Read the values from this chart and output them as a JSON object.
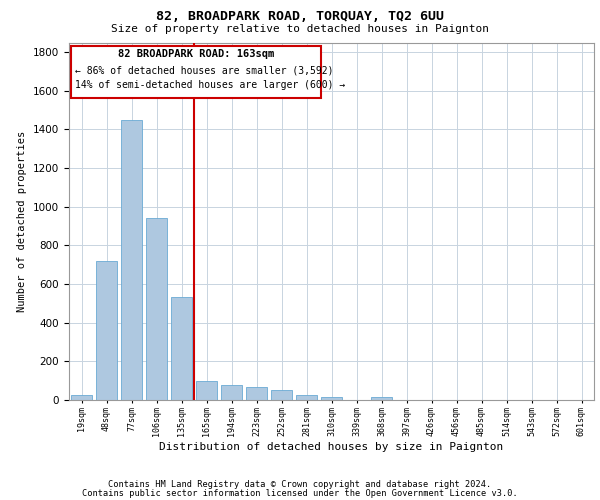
{
  "title": "82, BROADPARK ROAD, TORQUAY, TQ2 6UU",
  "subtitle": "Size of property relative to detached houses in Paignton",
  "xlabel": "Distribution of detached houses by size in Paignton",
  "ylabel": "Number of detached properties",
  "bar_color": "#aec8e0",
  "bar_edge_color": "#6aaad4",
  "categories": [
    "19sqm",
    "48sqm",
    "77sqm",
    "106sqm",
    "135sqm",
    "165sqm",
    "194sqm",
    "223sqm",
    "252sqm",
    "281sqm",
    "310sqm",
    "339sqm",
    "368sqm",
    "397sqm",
    "426sqm",
    "456sqm",
    "485sqm",
    "514sqm",
    "543sqm",
    "572sqm",
    "601sqm"
  ],
  "values": [
    28,
    720,
    1450,
    940,
    535,
    100,
    80,
    68,
    52,
    28,
    13,
    0,
    13,
    0,
    0,
    0,
    0,
    0,
    0,
    0,
    0
  ],
  "ylim": [
    0,
    1850
  ],
  "yticks": [
    0,
    200,
    400,
    600,
    800,
    1000,
    1200,
    1400,
    1600,
    1800
  ],
  "property_line_index": 5,
  "annotation_line1": "82 BROADPARK ROAD: 163sqm",
  "annotation_line2": "← 86% of detached houses are smaller (3,592)",
  "annotation_line3": "14% of semi-detached houses are larger (600) →",
  "vline_color": "#cc0000",
  "footer1": "Contains HM Land Registry data © Crown copyright and database right 2024.",
  "footer2": "Contains public sector information licensed under the Open Government Licence v3.0.",
  "bg_color": "#ffffff",
  "grid_color": "#c8d4e0"
}
